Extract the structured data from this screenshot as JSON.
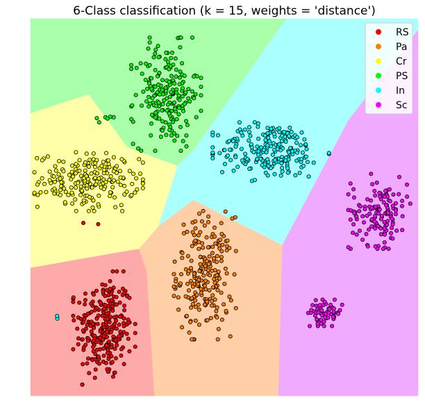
{
  "chart_data": {
    "type": "scatter",
    "title": "6-Class classification (k = 15, weights = 'distance')",
    "xlabel": "",
    "ylabel": "",
    "xlim": [
      0,
      100
    ],
    "ylim": [
      0,
      100
    ],
    "grid": false,
    "axes_visible": false,
    "legend": {
      "placement": "top-right"
    },
    "classes": [
      {
        "name": "RS",
        "point_color": "#ff0000",
        "region_color": "#ffaaaa"
      },
      {
        "name": "Pa",
        "point_color": "#ff8000",
        "region_color": "#ffd0a8"
      },
      {
        "name": "Cr",
        "point_color": "#ffff00",
        "region_color": "#ffffaa"
      },
      {
        "name": "PS",
        "point_color": "#00ff00",
        "region_color": "#aaffaa"
      },
      {
        "name": "In",
        "point_color": "#00ffff",
        "region_color": "#aaffff"
      },
      {
        "name": "Sc",
        "point_color": "#ff00ff",
        "region_color": "#f0aaff"
      }
    ],
    "regions": {
      "RS": [
        [
          0,
          0
        ],
        [
          0,
          34
        ],
        [
          22,
          38
        ],
        [
          28,
          39
        ],
        [
          30,
          33
        ],
        [
          32,
          0
        ]
      ],
      "Pa": [
        [
          32,
          0
        ],
        [
          30,
          33
        ],
        [
          28,
          39
        ],
        [
          33,
          45
        ],
        [
          42,
          52
        ],
        [
          65,
          40
        ],
        [
          64,
          0
        ]
      ],
      "Cr": [
        [
          0,
          34
        ],
        [
          0,
          75
        ],
        [
          15,
          80
        ],
        [
          25,
          66
        ],
        [
          38,
          61
        ],
        [
          33,
          45
        ],
        [
          28,
          39
        ],
        [
          22,
          38
        ]
      ],
      "PS": [
        [
          0,
          75
        ],
        [
          0,
          100
        ],
        [
          66,
          100
        ],
        [
          42,
          65
        ],
        [
          38,
          61
        ],
        [
          25,
          66
        ],
        [
          15,
          80
        ]
      ],
      "In": [
        [
          66,
          100
        ],
        [
          100,
          100
        ],
        [
          100,
          97
        ],
        [
          82,
          73
        ],
        [
          65,
          40
        ],
        [
          42,
          52
        ],
        [
          33,
          45
        ],
        [
          38,
          61
        ],
        [
          42,
          65
        ]
      ],
      "Sc": [
        [
          100,
          97
        ],
        [
          82,
          73
        ],
        [
          65,
          40
        ],
        [
          64,
          0
        ],
        [
          100,
          0
        ]
      ]
    },
    "clusters": [
      {
        "class": "RS",
        "cx": 19,
        "cy": 18,
        "rx": 8,
        "ry": 15,
        "n": 260
      },
      {
        "class": "RS",
        "cx": 16,
        "cy": 46,
        "rx": 3,
        "ry": 1,
        "n": 2
      },
      {
        "class": "Pa",
        "cx": 45,
        "cy": 32,
        "rx": 8,
        "ry": 17,
        "n": 220
      },
      {
        "class": "Cr",
        "cx": 15,
        "cy": 57,
        "rx": 14,
        "ry": 8,
        "n": 210
      },
      {
        "class": "PS",
        "cx": 35,
        "cy": 80,
        "rx": 9,
        "ry": 15,
        "n": 210
      },
      {
        "class": "PS",
        "cx": 20,
        "cy": 74,
        "rx": 4,
        "ry": 3,
        "n": 6
      },
      {
        "class": "In",
        "cx": 62,
        "cy": 65,
        "rx": 15,
        "ry": 8,
        "n": 220
      },
      {
        "class": "In",
        "cx": 7,
        "cy": 21,
        "rx": 0.4,
        "ry": 0.6,
        "n": 2
      },
      {
        "class": "Sc",
        "cx": 90,
        "cy": 49,
        "rx": 8,
        "ry": 10,
        "n": 140
      },
      {
        "class": "Sc",
        "cx": 76,
        "cy": 22,
        "rx": 5,
        "ry": 3.5,
        "n": 60
      }
    ]
  }
}
